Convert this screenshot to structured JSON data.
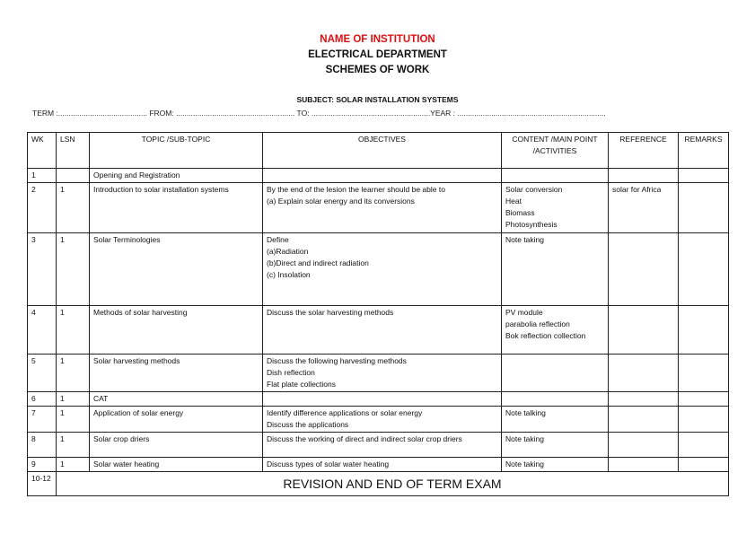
{
  "header": {
    "institution": "NAME OF INSTITUTION",
    "department": "ELECTRICAL  DEPARTMENT",
    "title": "SCHEMES OF WORK",
    "subject": "SUBJECT: SOLAR INSTALLATION SYSTEMS",
    "meta_line": "TERM :.......................................... FROM: ........................................................ TO: ........................................................YEAR : ......................................................................"
  },
  "colors": {
    "institution": "#e01010"
  },
  "table": {
    "columns": [
      "WK",
      "LSN",
      "TOPIC /SUB-TOPIC",
      "OBJECTIVES",
      "CONTENT /MAIN POINT /ACTIVITIES",
      "REFERENCE",
      "REMARKS"
    ],
    "rows": [
      {
        "wk": "1",
        "lsn": "",
        "topic": "Opening and Registration",
        "objectives": [],
        "content": [],
        "reference": "",
        "remarks": ""
      },
      {
        "wk": "2",
        "lsn": "1",
        "topic": "Introduction to solar installation systems",
        "objectives": [
          "By the end of the lesion the learner should be able to",
          "(a) Explain solar energy and its conversions"
        ],
        "content": [
          "Solar conversion",
          "Heat",
          "Biomass",
          "Photosynthesis"
        ],
        "reference": "solar for Africa",
        "remarks": ""
      },
      {
        "wk": "3",
        "lsn": "1",
        "topic": "Solar Terminologies",
        "objectives": [
          "Define",
          "(a)Radiation",
          "(b)Direct and indirect radiation",
          "(c) Insolation"
        ],
        "content": [
          "Note taking"
        ],
        "reference": "",
        "remarks": ""
      },
      {
        "wk": "4",
        "lsn": "1",
        "topic": "Methods of solar harvesting",
        "objectives": [
          "Discuss the solar harvesting methods"
        ],
        "content": [
          "PV module",
          "parabolia  reflection",
          "Bok reflection collection"
        ],
        "reference": "",
        "remarks": ""
      },
      {
        "wk": "5",
        "lsn": "1",
        "topic": "Solar harvesting methods",
        "objectives": [
          "Discuss the following harvesting methods",
          "Dish reflection",
          "Flat plate collections"
        ],
        "content": [],
        "reference": "",
        "remarks": ""
      },
      {
        "wk": "6",
        "lsn": "1",
        "topic": "CAT",
        "objectives": [],
        "content": [],
        "reference": "",
        "remarks": ""
      },
      {
        "wk": "7",
        "lsn": "1",
        "topic": "Application of solar energy",
        "objectives": [
          "Identify difference applications or solar energy",
          "Discuss the applications"
        ],
        "content": [
          "Note talking"
        ],
        "reference": "",
        "remarks": ""
      },
      {
        "wk": "8",
        "lsn": "1",
        "topic": "Solar crop driers",
        "objectives": [
          "Discuss the working of direct and indirect solar crop driers"
        ],
        "content": [
          "Note taking"
        ],
        "reference": "",
        "remarks": ""
      },
      {
        "wk": "9",
        "lsn": "1",
        "topic": "Solar water heating",
        "objectives": [
          "Discuss types of solar water heating"
        ],
        "content": [
          "Note taking"
        ],
        "reference": "",
        "remarks": ""
      }
    ],
    "final_row": {
      "wk": "10-12",
      "text": "REVISION AND END OF TERM EXAM"
    }
  }
}
